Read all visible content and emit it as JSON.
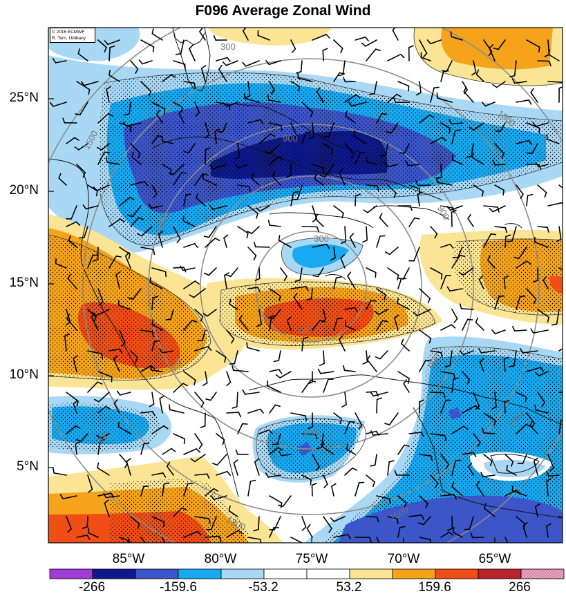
{
  "title": "F096 Average Zonal Wind",
  "credit": {
    "line1": "© 2016 ECMWF",
    "line2": "R. Torn, UAlbany"
  },
  "lat_labels": [
    "25°N",
    "20°N",
    "15°N",
    "10°N",
    "5°N"
  ],
  "lon_labels": [
    "85°W",
    "80°W",
    "75°W",
    "70°W",
    "65°W"
  ],
  "colorbar": {
    "labels": [
      "-266",
      "-159.6",
      "-53.2",
      "53.2",
      "159.6",
      "266"
    ],
    "colors": [
      "#a23ad6",
      "#0e1a8c",
      "#3c55c9",
      "#18a9f0",
      "#a9d8f5",
      "#ffffff",
      "#ffffff",
      "#fbe595",
      "#f5a31b",
      "#f04e16",
      "#b8222a",
      "#f7a8c8"
    ]
  },
  "contour_labels": [
    "300",
    "900",
    "1500",
    "600",
    "600",
    "900",
    "300",
    "900",
    "900",
    "1500",
    "1500",
    "1500",
    "900",
    "900",
    "1800"
  ]
}
